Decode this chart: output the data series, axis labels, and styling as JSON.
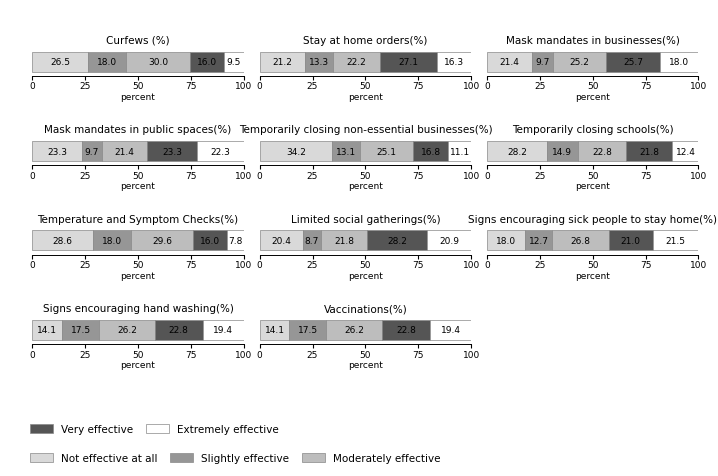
{
  "charts": [
    {
      "title": "Curfews (%)",
      "values": [
        26.5,
        18.0,
        30.0,
        16.0,
        9.5
      ]
    },
    {
      "title": "Stay at home orders(%)",
      "values": [
        21.2,
        13.3,
        22.2,
        27.1,
        16.3
      ]
    },
    {
      "title": "Mask mandates in businesses(%)",
      "values": [
        21.4,
        9.7,
        25.2,
        25.7,
        18.0
      ]
    },
    {
      "title": "Mask mandates in public spaces(%)",
      "values": [
        23.3,
        9.7,
        21.4,
        23.3,
        22.3
      ]
    },
    {
      "title": "Temporarily closing non-essential businesses(%)",
      "values": [
        34.2,
        13.1,
        25.1,
        16.8,
        11.1
      ]
    },
    {
      "title": "Temporarily closing schools(%)",
      "values": [
        28.2,
        14.9,
        22.8,
        21.8,
        12.4
      ]
    },
    {
      "title": "Temperature and Symptom Checks(%)",
      "values": [
        28.6,
        18.0,
        29.6,
        16.0,
        7.8
      ]
    },
    {
      "title": "Limited social gatherings(%)",
      "values": [
        20.4,
        8.7,
        21.8,
        28.2,
        20.9
      ]
    },
    {
      "title": "Signs encouraging sick people to stay home(%)",
      "values": [
        18.0,
        12.7,
        26.8,
        21.0,
        21.5
      ]
    },
    {
      "title": "Signs encouraging hand washing(%)",
      "values": [
        14.1,
        17.5,
        26.2,
        22.8,
        19.4
      ]
    },
    {
      "title": "Vaccinations(%)",
      "values": [
        14.1,
        17.5,
        26.2,
        22.8,
        19.4
      ]
    }
  ],
  "colors": [
    "#d9d9d9",
    "#969696",
    "#bdbdbd",
    "#555555",
    "#ffffff"
  ],
  "legend_labels": [
    "Not effective at all",
    "Slightly effective",
    "Moderately effective",
    "Very effective",
    "Extremely effective"
  ],
  "xlabel": "percent",
  "xlim": [
    0,
    100
  ],
  "xticks": [
    0,
    25,
    50,
    75,
    100
  ],
  "title_fontsize": 7.5,
  "label_fontsize": 6.5,
  "tick_fontsize": 6.5,
  "value_fontsize": 6.5
}
